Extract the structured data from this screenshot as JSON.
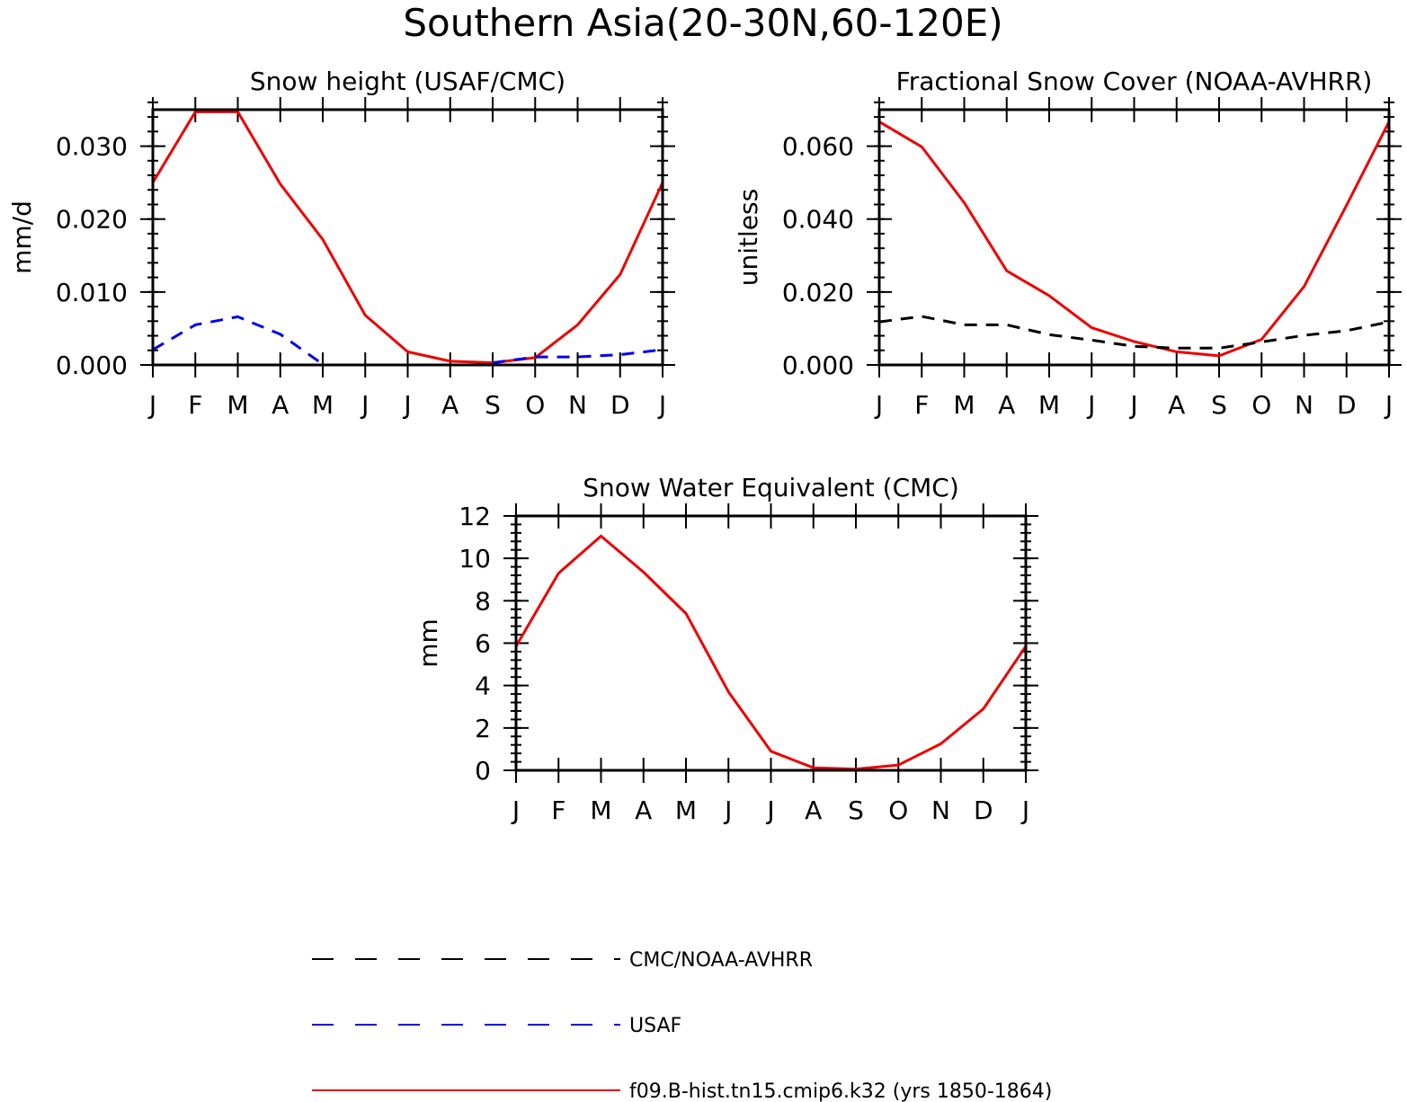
{
  "title": "Southern Asia(20-30N,60-120E)",
  "months": [
    "J",
    "F",
    "M",
    "A",
    "M",
    "J",
    "J",
    "A",
    "S",
    "O",
    "N",
    "D",
    "J"
  ],
  "chart_data": [
    {
      "type": "line",
      "title": "Snow height (USAF/CMC)",
      "ylabel": "mm/d",
      "ylim": [
        0,
        0.035
      ],
      "yticks": [
        0.0,
        0.01,
        0.02,
        0.03
      ],
      "ytick_labels": [
        "0.000",
        "0.010",
        "0.020",
        "0.030"
      ],
      "yminor_step": 0.002,
      "series": [
        {
          "name": "f09.B-hist.tn15.cmip6.k32 (yrs 1850-1864)",
          "color": "#ee0000",
          "dash": "solid",
          "values": [
            0.025,
            0.0347,
            0.0347,
            0.0248,
            0.0172,
            0.0068,
            0.0018,
            0.0005,
            0.0003,
            0.001,
            0.0055,
            0.0124,
            0.025
          ]
        },
        {
          "name": "USAF",
          "color": "#0000ee",
          "dash": "dashed",
          "values": [
            0.0021,
            0.0055,
            0.0066,
            0.0042,
            0.0001,
            null,
            null,
            null,
            0.0003,
            0.0011,
            0.0011,
            0.0014,
            0.0021
          ]
        },
        {
          "name": "CMC/NOAA-AVHRR",
          "color": "#000000",
          "dash": "dashed",
          "values": [
            0,
            0,
            0,
            0,
            0,
            0,
            0,
            0,
            0,
            0,
            0,
            0,
            0
          ]
        }
      ]
    },
    {
      "type": "line",
      "title": "Fractional Snow Cover (NOAA-AVHRR)",
      "ylabel": "unitless",
      "ylim": [
        0,
        0.07
      ],
      "yticks": [
        0.0,
        0.02,
        0.04,
        0.06
      ],
      "ytick_labels": [
        "0.000",
        "0.020",
        "0.040",
        "0.060"
      ],
      "yminor_step": 0.004,
      "series": [
        {
          "name": "f09.B-hist.tn15.cmip6.k32 (yrs 1850-1864)",
          "color": "#ee0000",
          "dash": "solid",
          "values": [
            0.0667,
            0.0598,
            0.0445,
            0.0258,
            0.019,
            0.0102,
            0.0064,
            0.0036,
            0.0025,
            0.007,
            0.0215,
            0.0438,
            0.0667
          ]
        },
        {
          "name": "CMC/NOAA-AVHRR",
          "color": "#000000",
          "dash": "dashed",
          "values": [
            0.0118,
            0.0133,
            0.011,
            0.011,
            0.0083,
            0.0068,
            0.0051,
            0.0046,
            0.0046,
            0.0063,
            0.0081,
            0.0094,
            0.0118
          ]
        }
      ]
    },
    {
      "type": "line",
      "title": "Snow Water Equivalent (CMC)",
      "ylabel": "mm",
      "ylim": [
        0,
        12
      ],
      "yticks": [
        0,
        2,
        4,
        6,
        8,
        10,
        12
      ],
      "ytick_labels": [
        "0",
        "2",
        "4",
        "6",
        "8",
        "10",
        "12"
      ],
      "yminor_step": 0.4,
      "series": [
        {
          "name": "f09.B-hist.tn15.cmip6.k32 (yrs 1850-1864)",
          "color": "#ee0000",
          "dash": "solid",
          "values": [
            5.85,
            9.3,
            11.05,
            9.35,
            7.4,
            3.7,
            0.9,
            0.12,
            0.06,
            0.25,
            1.25,
            2.9,
            5.85
          ]
        },
        {
          "name": "CMC/NOAA-AVHRR",
          "color": "#000000",
          "dash": "dashed",
          "values": [
            0,
            0,
            0,
            0,
            0,
            0,
            0,
            0,
            0,
            0,
            0,
            0,
            0
          ]
        }
      ]
    }
  ],
  "legend": [
    {
      "label": "CMC/NOAA-AVHRR",
      "color": "#000000",
      "dash": "dashed"
    },
    {
      "label": "USAF",
      "color": "#0000ee",
      "dash": "dashed"
    },
    {
      "label": "f09.B-hist.tn15.cmip6.k32 (yrs 1850-1864)",
      "color": "#ee0000",
      "dash": "solid"
    }
  ]
}
